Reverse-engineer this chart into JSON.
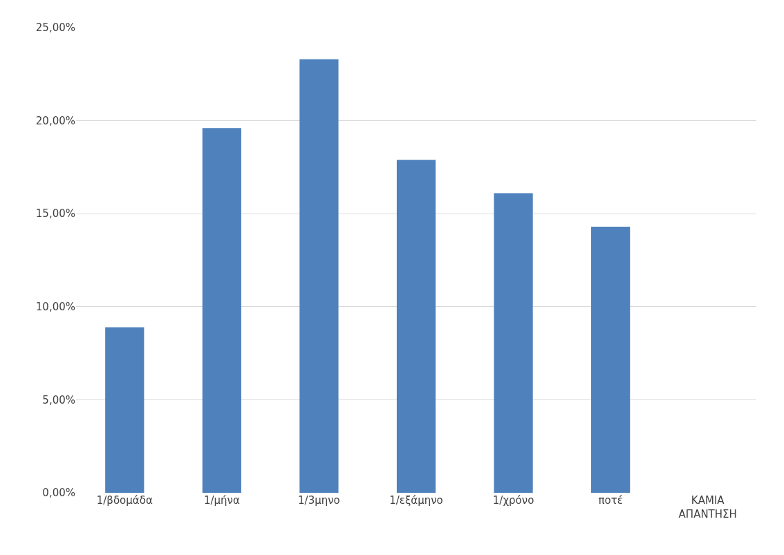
{
  "chart_data": {
    "type": "bar",
    "categories": [
      "1/βδομάδα",
      "1/μήνα",
      "1/3μηνο",
      "1/εξάμηνο",
      "1/χρόνο",
      "ποτέ",
      "ΚΑΜΙΑ ΑΠΑΝΤΗΣΗ"
    ],
    "values": [
      8.9,
      19.6,
      23.3,
      17.9,
      16.1,
      14.3,
      0
    ],
    "color": "#4f81bd",
    "ylim": [
      0,
      25
    ],
    "yticks": [
      {
        "value": 0,
        "label": "0,00%"
      },
      {
        "value": 5,
        "label": "5,00%"
      },
      {
        "value": 10,
        "label": "10,00%"
      },
      {
        "value": 15,
        "label": "15,00%"
      },
      {
        "value": 20,
        "label": "20,00%"
      },
      {
        "value": 25,
        "label": "25,00%"
      }
    ],
    "grid": "y",
    "legend": false
  }
}
